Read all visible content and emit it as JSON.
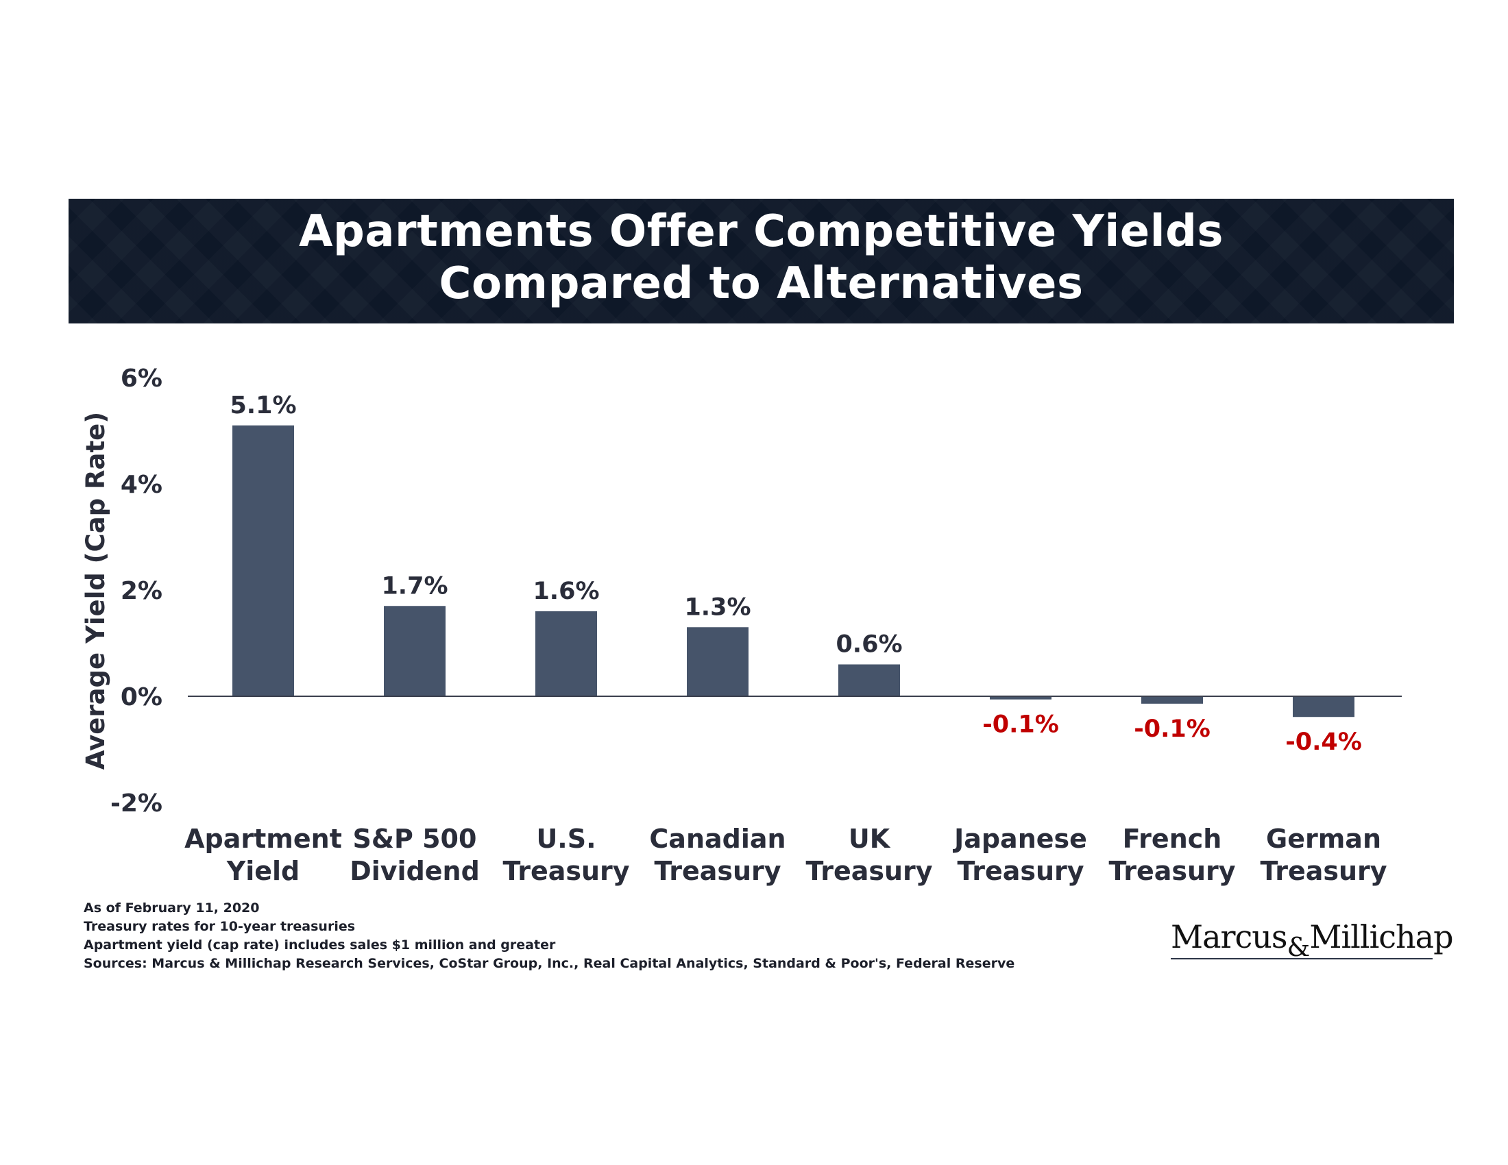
{
  "header": {
    "title_line1": "Apartments Offer Competitive Yields",
    "title_line2": "Compared to Alternatives"
  },
  "chart_data": {
    "type": "bar",
    "title": "Apartments Offer Competitive Yields Compared to Alternatives",
    "xlabel": "",
    "ylabel": "Average Yield (Cap Rate)",
    "ylim": [
      -2,
      6
    ],
    "yticks": [
      6,
      4,
      2,
      0,
      -2
    ],
    "ytick_labels": [
      "6%",
      "4%",
      "2%",
      "0%",
      "-2%"
    ],
    "grid": false,
    "categories": [
      [
        "Apartment",
        "Yield"
      ],
      [
        "S&P 500",
        "Dividend"
      ],
      [
        "U.S.",
        "Treasury"
      ],
      [
        "Canadian",
        "Treasury"
      ],
      [
        "UK",
        "Treasury"
      ],
      [
        "Japanese",
        "Treasury"
      ],
      [
        "French",
        "Treasury"
      ],
      [
        "German",
        "Treasury"
      ]
    ],
    "values": [
      5.1,
      1.7,
      1.6,
      1.3,
      0.6,
      -0.06,
      -0.14,
      -0.39
    ],
    "data_labels": [
      "5.1%",
      "1.7%",
      "1.6%",
      "1.3%",
      "0.6%",
      "-0.1%",
      "-0.1%",
      "-0.4%"
    ],
    "colors": {
      "bar": "#46546a",
      "positive_label": "#2a2d3a",
      "negative_label": "#c00000",
      "axis": "#3a3f4d"
    }
  },
  "footnotes": [
    "As of February 11, 2020",
    "Treasury rates for 10-year treasuries",
    "Apartment yield (cap rate) includes sales $1 million and greater",
    "Sources: Marcus & Millichap Research Services, CoStar Group, Inc., Real Capital Analytics, Standard & Poor's, Federal Reserve"
  ],
  "logo": {
    "part1": "Marcus",
    "amp": "&",
    "part2": "Millichap"
  }
}
